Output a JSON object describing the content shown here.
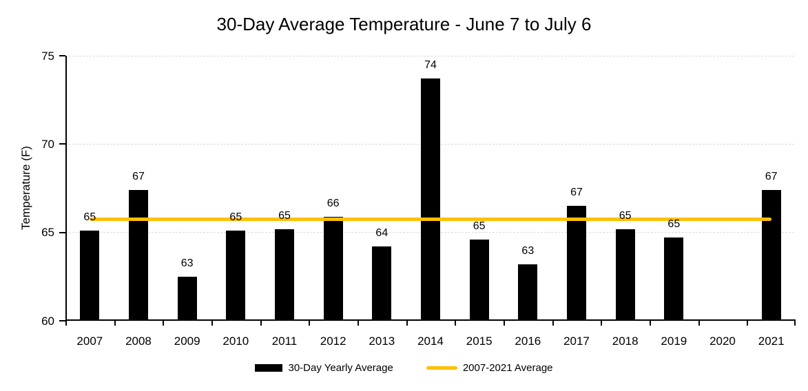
{
  "chart_data": {
    "type": "bar",
    "title": "30-Day Average Temperature - June 7 to July 6",
    "xlabel": "",
    "ylabel": "Temperature (F)",
    "ylim": [
      60,
      75
    ],
    "yticks": [
      60,
      65,
      70,
      75
    ],
    "grid": "horizontal, light gray dashed",
    "legend_position": "bottom",
    "categories": [
      "2007",
      "2008",
      "2009",
      "2010",
      "2011",
      "2012",
      "2013",
      "2014",
      "2015",
      "2016",
      "2017",
      "2018",
      "2019",
      "2020",
      "2021"
    ],
    "series": [
      {
        "name": "30-Day Yearly Average",
        "type": "bar",
        "color": "#000000",
        "values": [
          65.1,
          67.4,
          62.5,
          65.1,
          65.2,
          65.9,
          64.2,
          73.7,
          64.6,
          63.2,
          66.5,
          65.2,
          64.7,
          null,
          67.4
        ],
        "data_labels": [
          "65",
          "67",
          "63",
          "65",
          "65",
          "66",
          "64",
          "74",
          "65",
          "63",
          "67",
          "65",
          "65",
          null,
          "67"
        ]
      },
      {
        "name": "2007-2021 Average",
        "type": "line",
        "color": "#FFC000",
        "value": 65.75,
        "span_categories": [
          "2007",
          "2021"
        ]
      }
    ]
  }
}
